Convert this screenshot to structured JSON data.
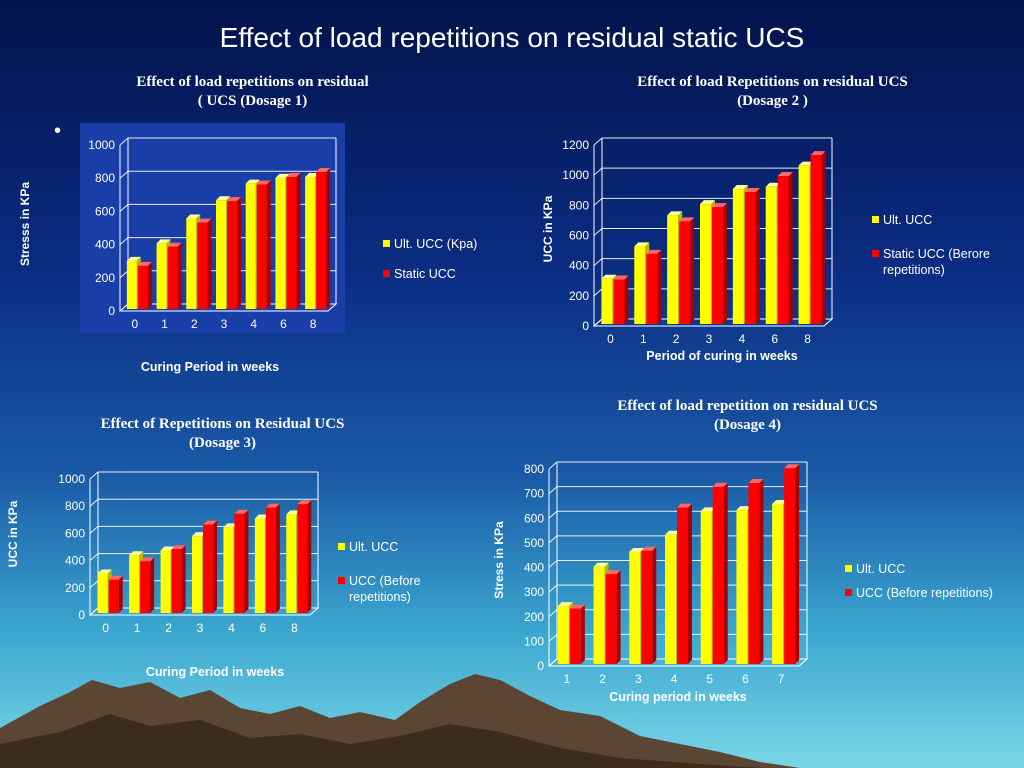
{
  "slide": {
    "title": "Effect of load repetitions on residual static UCS",
    "bullet": "•"
  },
  "colors": {
    "ult": "#ffff00",
    "static": "#ff0000",
    "axis": "#ffffff",
    "panel1_bg": "#1a3ea8"
  },
  "chart_data": [
    {
      "type": "bar",
      "title_line1": "Effect of load repetitions on residual",
      "title_line2": "( UCS (Dosage 1)",
      "xlabel": "Curing Period in weeks",
      "ylabel": "Stresss in KPa",
      "categories": [
        "0",
        "1",
        "2",
        "3",
        "4",
        "6",
        "8"
      ],
      "ylim": [
        0,
        1000
      ],
      "yticks": [
        0,
        200,
        400,
        600,
        800,
        1000
      ],
      "series": [
        {
          "name": "Ult. UCC (Kpa)",
          "values": [
            290,
            395,
            545,
            655,
            755,
            790,
            795
          ]
        },
        {
          "name": "Static UCC",
          "values": [
            260,
            375,
            520,
            650,
            750,
            795,
            825
          ]
        }
      ],
      "legend": "right"
    },
    {
      "type": "bar",
      "title_line1": "Effect of load  Repetitions on residual UCS",
      "title_line2": "(Dosage 2 )",
      "xlabel": "Period of curing in weeks",
      "ylabel": "UCC in KPa",
      "categories": [
        "0",
        "1",
        "2",
        "3",
        "4",
        "6",
        "8"
      ],
      "ylim": [
        0,
        1200
      ],
      "yticks": [
        0,
        200,
        400,
        600,
        800,
        1000,
        1200
      ],
      "series": [
        {
          "name": "Ult. UCC",
          "values": [
            300,
            515,
            720,
            795,
            895,
            910,
            1050
          ]
        },
        {
          "name": "Static UCC  (Berore repetitions)",
          "values": [
            295,
            465,
            680,
            775,
            875,
            980,
            1120
          ]
        }
      ],
      "legend": "right"
    },
    {
      "type": "bar",
      "title_line1": "Effect of Repetitions on Residual UCS",
      "title_line2": "(Dosage 3)",
      "xlabel": "Curing Period in weeks",
      "ylabel": "UCC in KPa",
      "categories": [
        "0",
        "1",
        "2",
        "3",
        "4",
        "6",
        "8"
      ],
      "ylim": [
        0,
        1000
      ],
      "yticks": [
        0,
        200,
        400,
        600,
        800,
        1000
      ],
      "series": [
        {
          "name": "Ult. UCC",
          "values": [
            290,
            425,
            460,
            565,
            630,
            695,
            725
          ]
        },
        {
          "name": "UCC (Before repetitions)",
          "values": [
            245,
            380,
            470,
            650,
            730,
            775,
            800
          ]
        }
      ],
      "legend": "right"
    },
    {
      "type": "bar",
      "title_line1": "Effect of load repetition on residual UCS",
      "title_line2": "(Dosage 4)",
      "xlabel": "Curing period in weeks",
      "ylabel": "Stress in KPa",
      "categories": [
        "1",
        "2",
        "3",
        "4",
        "5",
        "6",
        "7"
      ],
      "ylim": [
        0,
        800
      ],
      "yticks": [
        0,
        100,
        200,
        300,
        400,
        500,
        600,
        700,
        800
      ],
      "series": [
        {
          "name": "Ult. UCC",
          "values": [
            235,
            395,
            455,
            525,
            620,
            625,
            650
          ]
        },
        {
          "name": "UCC (Before repetitions)",
          "values": [
            225,
            365,
            460,
            635,
            720,
            735,
            795
          ]
        }
      ],
      "legend": "right"
    }
  ]
}
